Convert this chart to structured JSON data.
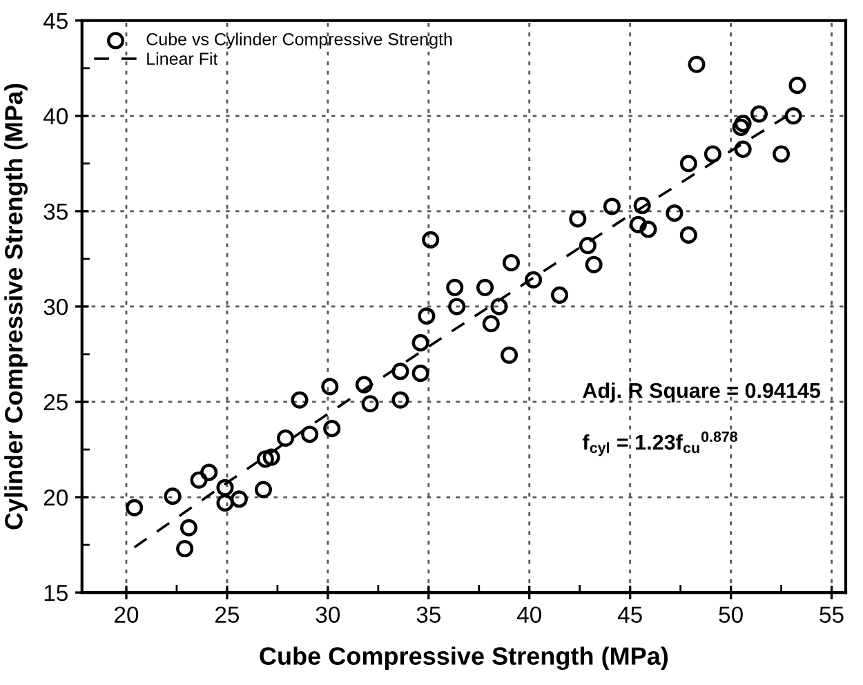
{
  "chart_data": {
    "type": "scatter",
    "xlabel": "Cube Compressive Strength (MPa)",
    "ylabel": "Cylinder Compressive Strength (MPa)",
    "xlim": [
      17.8,
      55.7
    ],
    "ylim": [
      15,
      45
    ],
    "xticks": [
      20,
      25,
      30,
      35,
      40,
      45,
      50,
      55
    ],
    "yticks": [
      15,
      20,
      25,
      30,
      35,
      40,
      45
    ],
    "grid": true,
    "legend": "top left",
    "annotations": [
      "Adj. R Square = 0.94145",
      "f$_{cyl}$ = 1.23f$_{cu}$$^{0.878}$"
    ],
    "series": [
      {
        "name": "Cube vs Cylinder Compressive Strength",
        "marker": "circle",
        "color": "#000000",
        "x": [
          20.4,
          22.3,
          22.9,
          23.1,
          23.6,
          24.1,
          24.9,
          24.9,
          25.6,
          26.8,
          26.9,
          27.2,
          27.9,
          28.6,
          29.1,
          30.1,
          30.2,
          31.8,
          32.1,
          33.6,
          33.6,
          34.6,
          34.6,
          34.9,
          35.1,
          36.3,
          36.4,
          37.8,
          38.1,
          38.5,
          39.0,
          39.1,
          40.2,
          41.5,
          42.4,
          42.9,
          43.2,
          44.1,
          45.4,
          45.6,
          45.9,
          47.2,
          47.9,
          47.9,
          48.3,
          49.1,
          50.5,
          50.6,
          50.6,
          51.4,
          52.5,
          53.1,
          53.3
        ],
        "values": [
          19.45,
          20.05,
          17.3,
          18.4,
          20.9,
          21.3,
          20.5,
          19.7,
          19.9,
          20.4,
          22.0,
          22.1,
          23.1,
          25.1,
          23.3,
          25.8,
          23.6,
          25.9,
          24.9,
          26.6,
          25.1,
          26.5,
          28.1,
          29.5,
          33.5,
          31.0,
          30.0,
          31.0,
          29.1,
          30.0,
          27.45,
          32.3,
          31.4,
          30.6,
          34.6,
          33.2,
          32.2,
          35.25,
          34.3,
          35.3,
          34.05,
          34.9,
          33.75,
          37.5,
          42.7,
          38.0,
          39.4,
          39.6,
          38.25,
          40.1,
          38.0,
          40.0,
          41.6
        ]
      },
      {
        "name": "Linear Fit",
        "type": "line",
        "line_style": "dashed",
        "marker": "none",
        "color": "#000000",
        "x": [
          20.4,
          25,
          30,
          35,
          40,
          45,
          50,
          53.1
        ],
        "values": [
          17.37,
          20.76,
          24.37,
          27.9,
          31.37,
          34.8,
          38.16,
          40.2
        ]
      }
    ]
  }
}
